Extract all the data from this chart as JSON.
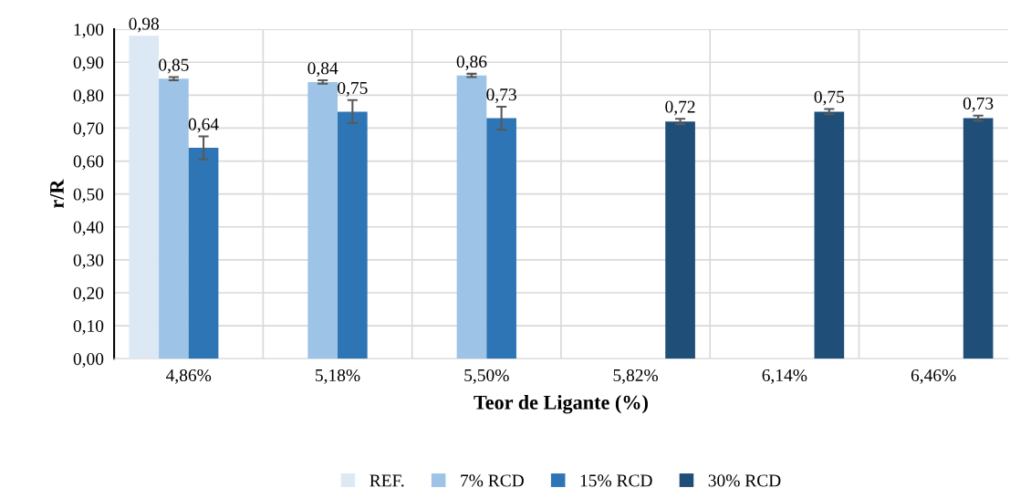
{
  "chart_data": {
    "type": "bar",
    "xlabel": "Teor de Ligante (%)",
    "ylabel": "r/R",
    "categories": [
      "4,86%",
      "5,18%",
      "5,50%",
      "5,82%",
      "6,14%",
      "6,46%"
    ],
    "series": [
      {
        "name": "REF.",
        "color": "#dce9f5",
        "values": [
          0.98,
          null,
          null,
          null,
          null,
          null
        ],
        "value_labels": [
          "0,98",
          null,
          null,
          null,
          null,
          null
        ]
      },
      {
        "name": "7% RCD",
        "color": "#9dc3e6",
        "values": [
          0.85,
          0.84,
          0.86,
          null,
          null,
          null
        ],
        "errors": [
          0.005,
          0.005,
          0.005,
          null,
          null,
          null
        ],
        "value_labels": [
          "0,85",
          "0,84",
          "0,86",
          null,
          null,
          null
        ]
      },
      {
        "name": "15% RCD",
        "color": "#2e75b6",
        "values": [
          0.64,
          0.75,
          0.73,
          null,
          null,
          null
        ],
        "errors": [
          0.035,
          0.035,
          0.035,
          null,
          null,
          null
        ],
        "value_labels": [
          "0,64",
          "0,75",
          "0,73",
          null,
          null,
          null
        ]
      },
      {
        "name": "30% RCD",
        "color": "#1f4e79",
        "values": [
          null,
          null,
          null,
          0.72,
          0.75,
          0.73
        ],
        "errors": [
          null,
          null,
          null,
          0.008,
          0.008,
          0.008
        ],
        "value_labels": [
          null,
          null,
          null,
          "0,72",
          "0,75",
          "0,73"
        ]
      }
    ],
    "ylim": [
      0,
      1
    ],
    "yticks": [
      {
        "value": 0,
        "label": "0,00"
      },
      {
        "value": 0.1,
        "label": "0,10"
      },
      {
        "value": 0.2,
        "label": "0,20"
      },
      {
        "value": 0.3,
        "label": "0,30"
      },
      {
        "value": 0.4,
        "label": "0,40"
      },
      {
        "value": 0.5,
        "label": "0,50"
      },
      {
        "value": 0.6,
        "label": "0,60"
      },
      {
        "value": 0.7,
        "label": "0,70"
      },
      {
        "value": 0.8,
        "label": "0,80"
      },
      {
        "value": 0.9,
        "label": "0,90"
      },
      {
        "value": 1.0,
        "label": "1,00"
      }
    ],
    "grid": true,
    "legend": "bottom"
  }
}
